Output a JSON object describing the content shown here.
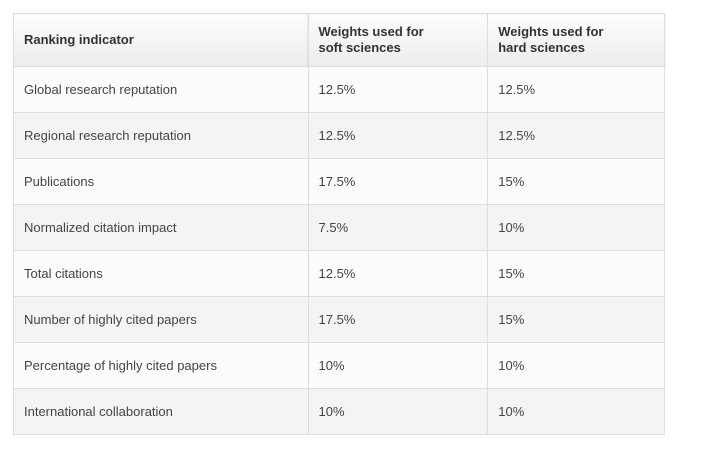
{
  "table": {
    "header": [
      "Ranking indicator",
      "Weights used for soft sciences",
      "Weights used for hard sciences"
    ],
    "rows": [
      [
        "Global research reputation",
        "12.5%",
        "12.5%"
      ],
      [
        "Regional research reputation",
        "12.5%",
        "12.5%"
      ],
      [
        "Publications",
        "17.5%",
        "15%"
      ],
      [
        "Normalized citation impact",
        "7.5%",
        "10%"
      ],
      [
        "Total citations",
        "12.5%",
        "15%"
      ],
      [
        "Number of highly cited papers",
        "17.5%",
        "15%"
      ],
      [
        "Percentage of highly cited papers",
        "10%",
        "10%"
      ],
      [
        "International collaboration",
        "10%",
        "10%"
      ]
    ]
  }
}
